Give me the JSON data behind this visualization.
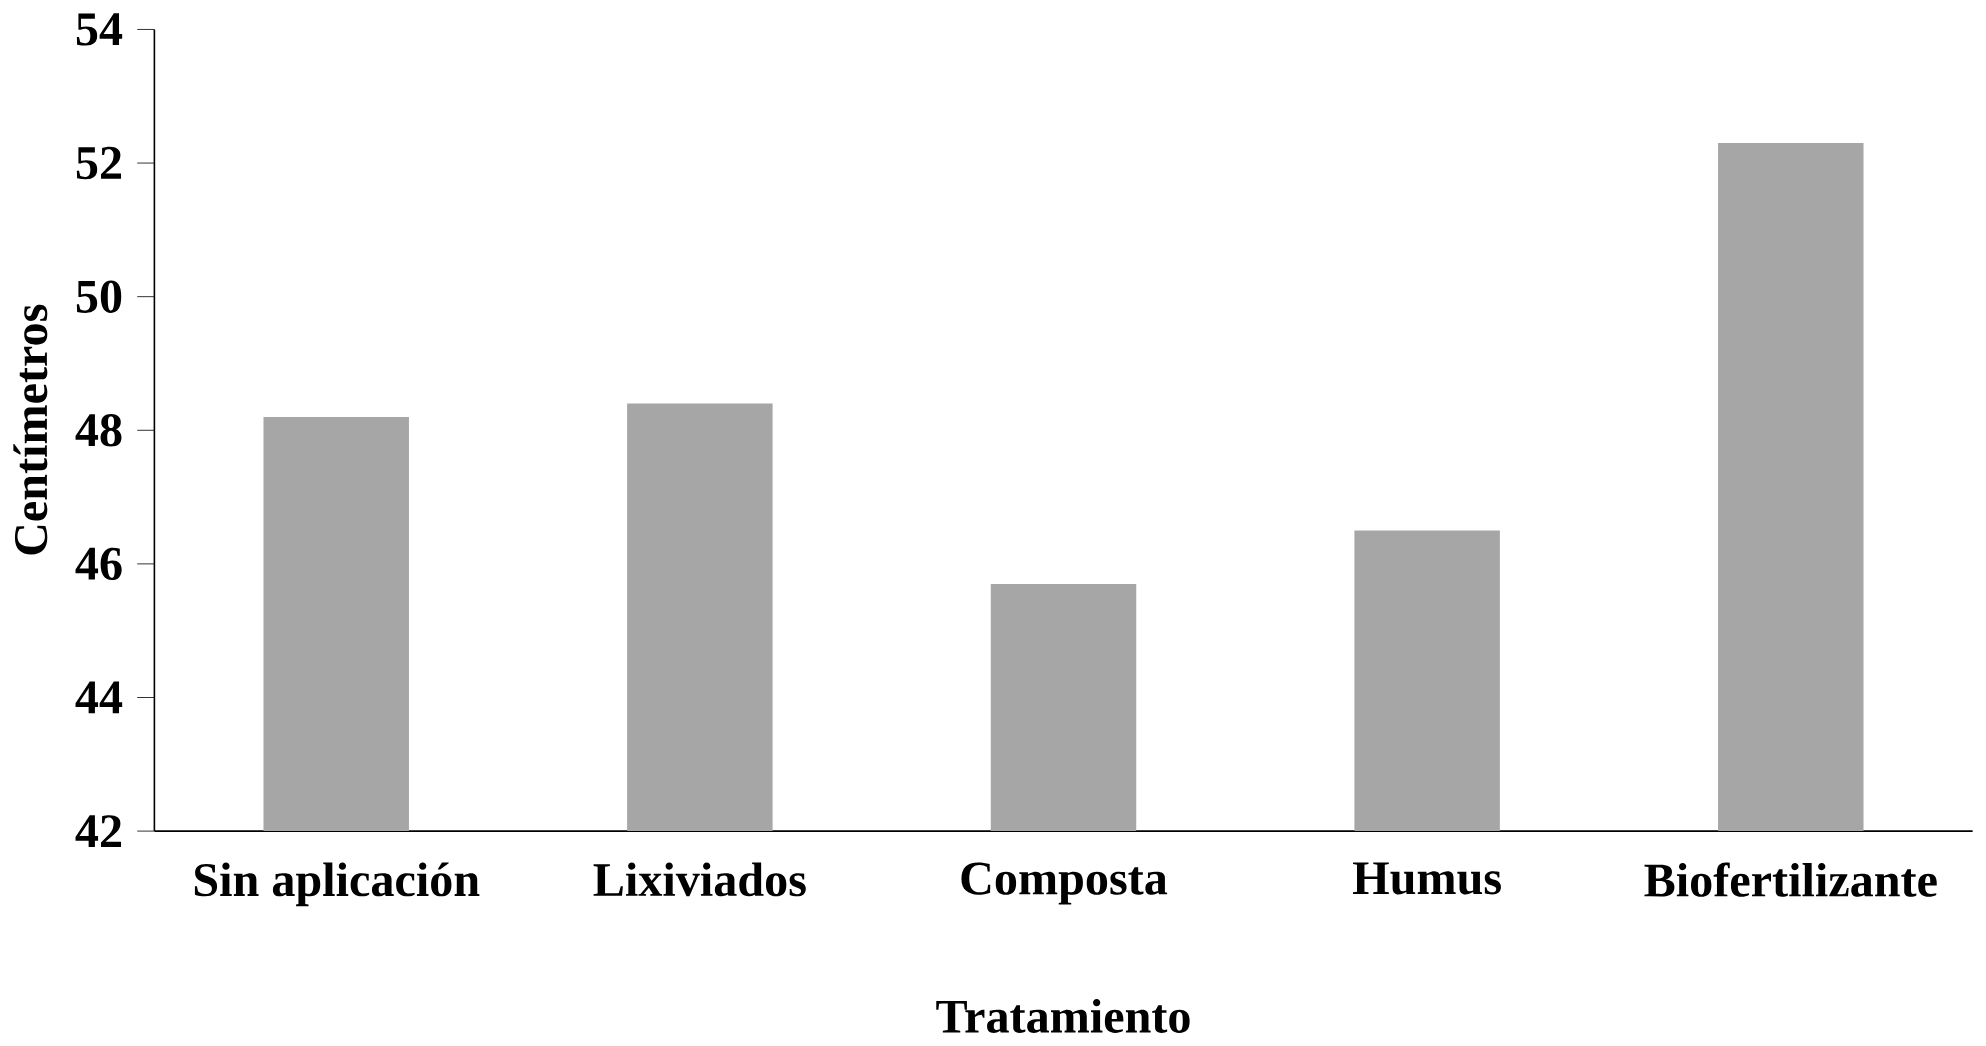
{
  "chart_data": {
    "type": "bar",
    "xlabel": "Tratamiento",
    "ylabel": "Centímetros",
    "categories": [
      "Sin aplicación",
      "Lixiviados",
      "Composta",
      "Humus",
      "Biofertilizante"
    ],
    "values": [
      48.2,
      48.4,
      45.7,
      46.5,
      52.3
    ],
    "color": "#a6a6a6",
    "ylim": [
      42,
      54
    ],
    "yticks": [
      42,
      44,
      46,
      48,
      50,
      52,
      54
    ],
    "grid": false
  }
}
